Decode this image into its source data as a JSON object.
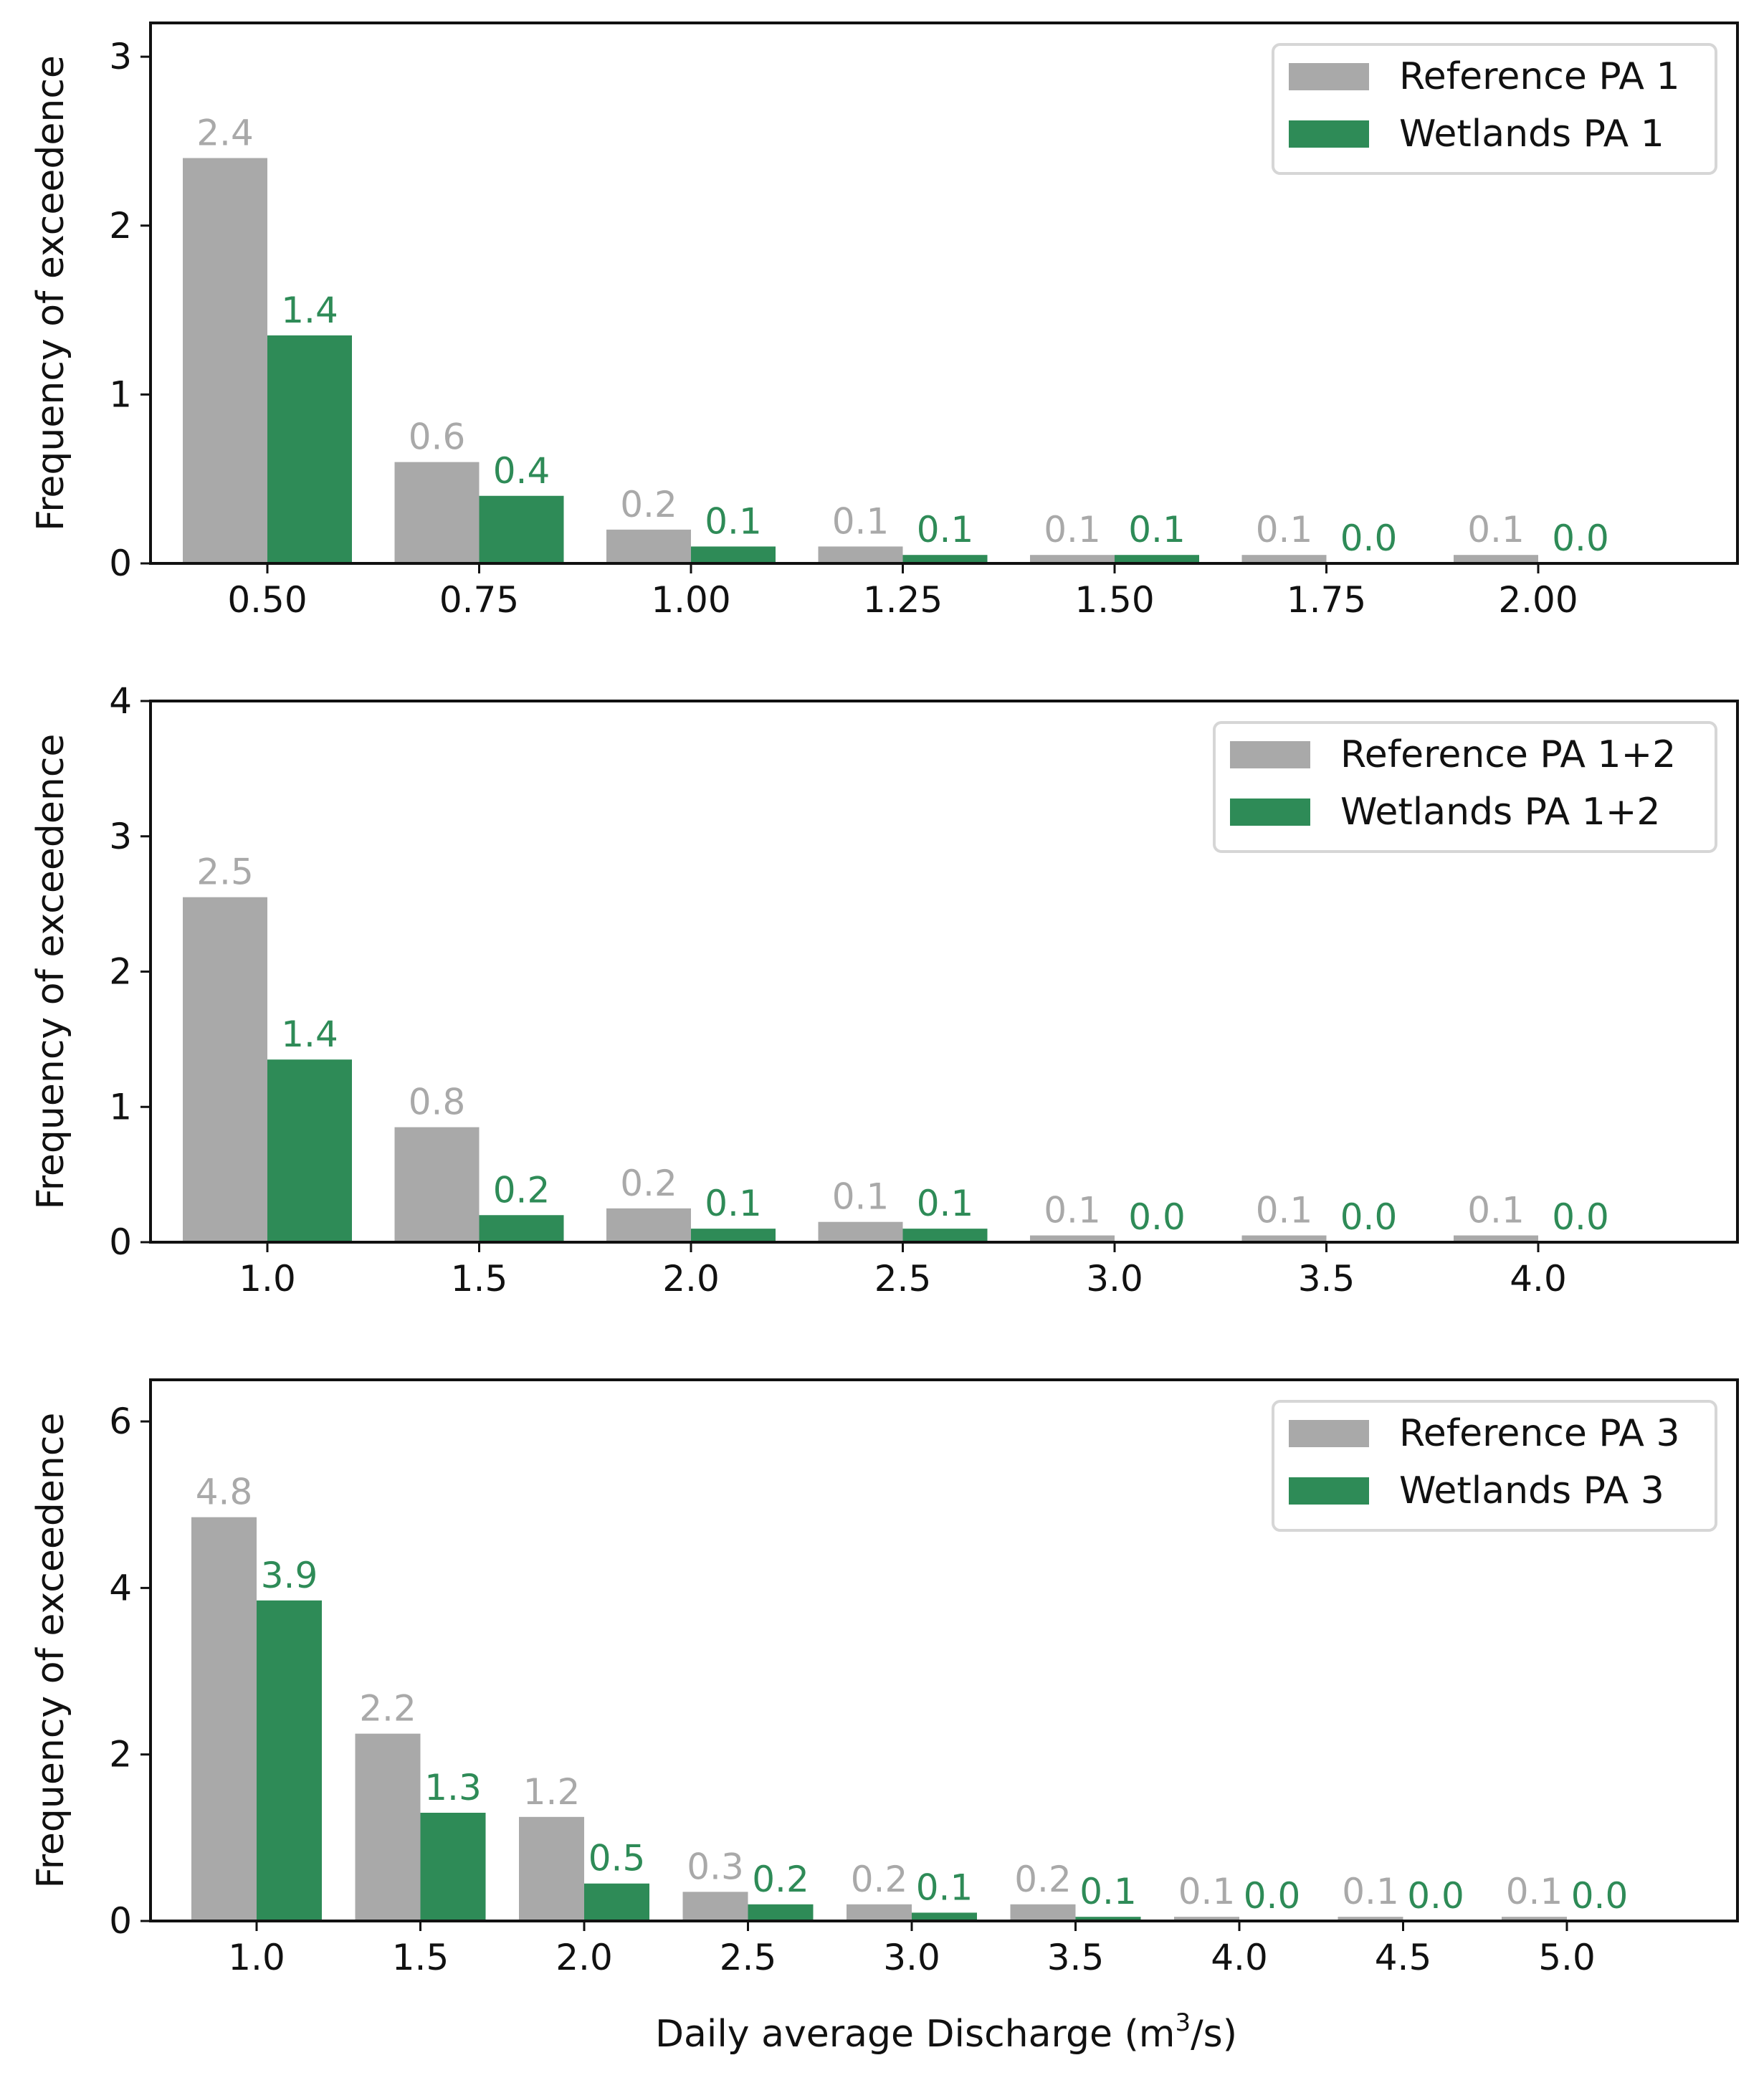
{
  "figure": {
    "xlabel_main": "Daily average Discharge (m",
    "xlabel_sup": "3",
    "xlabel_tail": "/s)"
  },
  "colors": {
    "reference": "#a9a9a9",
    "wetlands": "#2e8b57",
    "axis": "#111111",
    "legend_border": "#d6d6d6"
  },
  "chart_data": [
    {
      "type": "bar",
      "title": "",
      "xlabel": "",
      "ylabel": "Frequency of exceedence",
      "ylim": [
        0,
        3.2
      ],
      "yticks": [
        0,
        1,
        2,
        3
      ],
      "categories": [
        "0.50",
        "0.75",
        "1.00",
        "1.25",
        "1.50",
        "1.75",
        "2.00"
      ],
      "legend_position": "top-right",
      "series": [
        {
          "name": "Reference PA 1",
          "color_key": "reference",
          "values": [
            2.4,
            0.6,
            0.2,
            0.1,
            0.05,
            0.05,
            0.05
          ],
          "labels": [
            "2.4",
            "0.6",
            "0.2",
            "0.1",
            "0.1",
            "0.1",
            "0.1"
          ]
        },
        {
          "name": "Wetlands PA 1",
          "color_key": "wetlands",
          "values": [
            1.35,
            0.4,
            0.1,
            0.05,
            0.05,
            0.0,
            0.0
          ],
          "labels": [
            "1.4",
            "0.4",
            "0.1",
            "0.1",
            "0.1",
            "0.0",
            "0.0"
          ]
        }
      ]
    },
    {
      "type": "bar",
      "title": "",
      "xlabel": "",
      "ylabel": "Frequency of exceedence",
      "ylim": [
        0,
        4
      ],
      "yticks": [
        0,
        1,
        2,
        3,
        4
      ],
      "categories": [
        "1.0",
        "1.5",
        "2.0",
        "2.5",
        "3.0",
        "3.5",
        "4.0"
      ],
      "legend_position": "top-right",
      "series": [
        {
          "name": "Reference PA 1+2",
          "color_key": "reference",
          "values": [
            2.55,
            0.85,
            0.25,
            0.15,
            0.05,
            0.05,
            0.05
          ],
          "labels": [
            "2.5",
            "0.8",
            "0.2",
            "0.1",
            "0.1",
            "0.1",
            "0.1"
          ]
        },
        {
          "name": "Wetlands PA 1+2",
          "color_key": "wetlands",
          "values": [
            1.35,
            0.2,
            0.1,
            0.1,
            0.0,
            0.0,
            0.0
          ],
          "labels": [
            "1.4",
            "0.2",
            "0.1",
            "0.1",
            "0.0",
            "0.0",
            "0.0"
          ]
        }
      ]
    },
    {
      "type": "bar",
      "title": "",
      "xlabel": "Daily average Discharge (m3/s)",
      "ylabel": "Frequency of exceedence",
      "ylim": [
        0,
        6.5
      ],
      "yticks": [
        0,
        2,
        4,
        6
      ],
      "categories": [
        "1.0",
        "1.5",
        "2.0",
        "2.5",
        "3.0",
        "3.5",
        "4.0",
        "4.5",
        "5.0"
      ],
      "legend_position": "top-right",
      "series": [
        {
          "name": "Reference PA 3",
          "color_key": "reference",
          "values": [
            4.85,
            2.25,
            1.25,
            0.35,
            0.2,
            0.2,
            0.05,
            0.05,
            0.05
          ],
          "labels": [
            "4.8",
            "2.2",
            "1.2",
            "0.3",
            "0.2",
            "0.2",
            "0.1",
            "0.1",
            "0.1"
          ]
        },
        {
          "name": "Wetlands PA 3",
          "color_key": "wetlands",
          "values": [
            3.85,
            1.3,
            0.45,
            0.2,
            0.1,
            0.05,
            0.0,
            0.0,
            0.0
          ],
          "labels": [
            "3.9",
            "1.3",
            "0.5",
            "0.2",
            "0.1",
            "0.1",
            "0.0",
            "0.0",
            "0.0"
          ]
        }
      ]
    }
  ]
}
